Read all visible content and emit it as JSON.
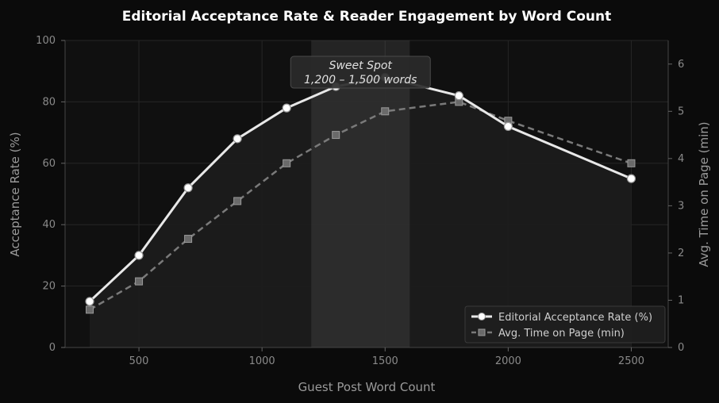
{
  "chart_data": {
    "type": "line",
    "title": "Editorial Acceptance Rate & Reader Engagement by Word Count",
    "xlabel": "Guest Post Word Count",
    "ylabel_left": "Acceptance Rate (%)",
    "ylabel_right": "Avg. Time on Page (min)",
    "xlim": [
      200,
      2650
    ],
    "ylim_left": [
      0,
      100
    ],
    "ylim_right": [
      0,
      6.5
    ],
    "x_ticks": [
      500,
      1000,
      1500,
      2000,
      2500
    ],
    "y_ticks_left": [
      0,
      20,
      40,
      60,
      80,
      100
    ],
    "y_ticks_right": [
      0,
      1,
      2,
      3,
      4,
      5,
      6
    ],
    "grid": true,
    "legend_position": "bottom-right",
    "highlight_band": {
      "x_start": 1200,
      "x_end": 1600
    },
    "annotation": {
      "line1": "Sweet Spot",
      "line2": "1,200 – 1,500 words",
      "x": 1400,
      "y": 85
    },
    "series": [
      {
        "name": "Editorial Acceptance Rate (%)",
        "axis": "left",
        "style": "solid-circle",
        "color": "#e8e8e8",
        "x": [
          300,
          500,
          700,
          900,
          1100,
          1300,
          1500,
          1800,
          2000,
          2500
        ],
        "values": [
          15,
          30,
          52,
          68,
          78,
          85,
          88,
          82,
          72,
          55
        ]
      },
      {
        "name": "Avg. Time on Page (min)",
        "axis": "right",
        "style": "dashed-square",
        "color": "#7a7a7a",
        "x": [
          300,
          500,
          700,
          900,
          1100,
          1300,
          1500,
          1800,
          2000,
          2500
        ],
        "values": [
          0.8,
          1.4,
          2.3,
          3.1,
          3.9,
          4.5,
          5.0,
          5.2,
          4.8,
          3.9
        ]
      }
    ]
  }
}
